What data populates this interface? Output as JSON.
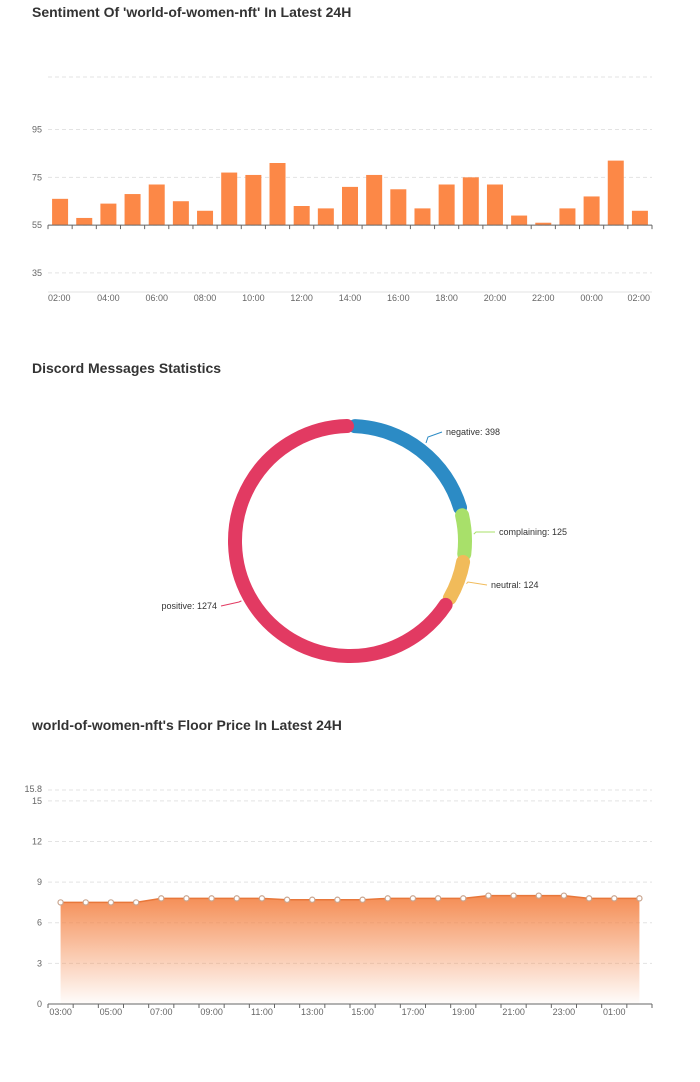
{
  "chart_data": [
    {
      "type": "bar",
      "title": "Sentiment Of 'world-of-women-nft' In Latest 24H",
      "x_tick_labels": [
        "02:00",
        "04:00",
        "06:00",
        "08:00",
        "10:00",
        "12:00",
        "14:00",
        "16:00",
        "18:00",
        "20:00",
        "22:00",
        "00:00",
        "02:00"
      ],
      "y_ticks": [
        35,
        55,
        75,
        95
      ],
      "ylim": [
        27,
        117
      ],
      "baseline": 55,
      "color": "#fc8847",
      "values": [
        66,
        58,
        64,
        68,
        72,
        65,
        61,
        77,
        76,
        81,
        63,
        62,
        71,
        76,
        70,
        62,
        72,
        75,
        72,
        59,
        56,
        62,
        67,
        82,
        61
      ],
      "grid": true
    },
    {
      "type": "pie",
      "title": "Discord Messages Statistics",
      "slices": [
        {
          "label": "negative",
          "value": 398,
          "color": "#2c8bc5",
          "text": "negative: 398"
        },
        {
          "label": "complaining",
          "value": 125,
          "color": "#a8e06a",
          "text": "complaining: 125"
        },
        {
          "label": "neutral",
          "value": 124,
          "color": "#f1bb5a",
          "text": "neutral: 124"
        },
        {
          "label": "positive",
          "value": 1274,
          "color": "#e23a62",
          "text": "positive: 1274"
        }
      ]
    },
    {
      "type": "area",
      "title": "world-of-women-nft's Floor Price In Latest 24H",
      "x_tick_labels": [
        "03:00",
        "05:00",
        "07:00",
        "09:00",
        "11:00",
        "13:00",
        "15:00",
        "17:00",
        "19:00",
        "21:00",
        "23:00",
        "01:00"
      ],
      "y_ticks": [
        0,
        3,
        6,
        9,
        12,
        15
      ],
      "y_max_label": "15.8",
      "ylim": [
        0,
        15.8
      ],
      "color": "#f4874b",
      "values": [
        7.5,
        7.5,
        7.5,
        7.5,
        7.8,
        7.8,
        7.8,
        7.8,
        7.8,
        7.7,
        7.7,
        7.7,
        7.7,
        7.8,
        7.8,
        7.8,
        7.8,
        8.0,
        8.0,
        8.0,
        8.0,
        7.8,
        7.8,
        7.8
      ],
      "grid": true
    }
  ]
}
